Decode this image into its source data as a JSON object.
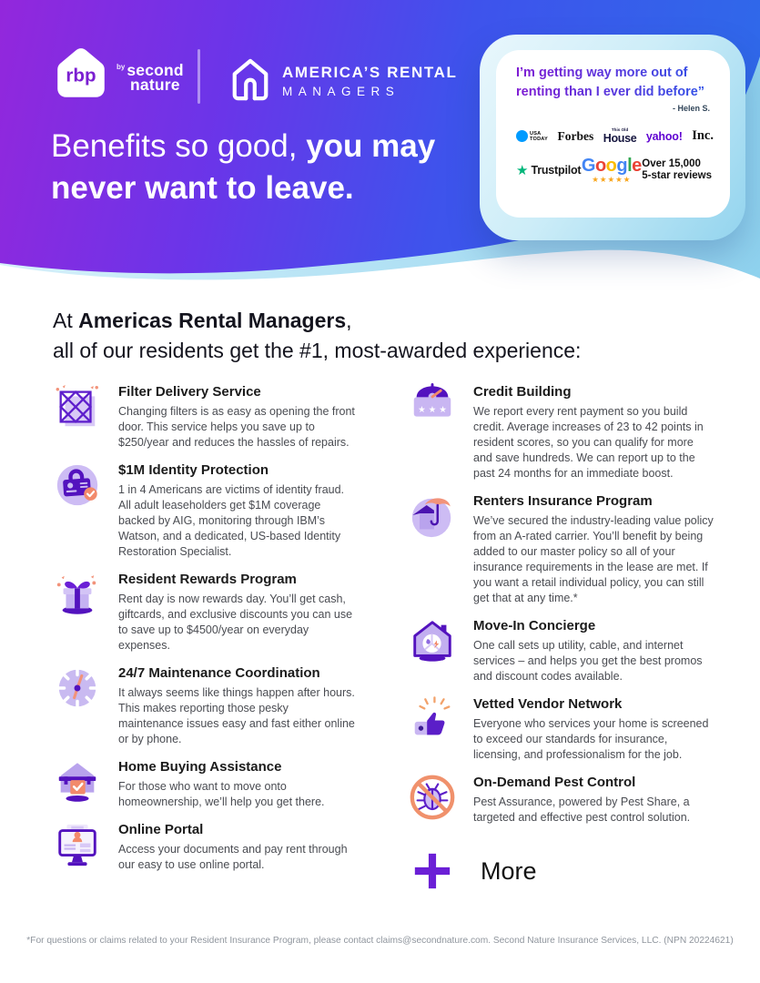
{
  "theme": {
    "accent_purple": "#6B1FD6",
    "accent_blue": "#2D6CE9",
    "accent_orange": "#F28A6B",
    "trustpilot_green": "#00B67A",
    "google_star_orange": "#F8A51B",
    "usatoday_blue": "#009BFF",
    "yahoo_purple": "#5F01D1",
    "google_letter_colors": [
      "#4285F4",
      "#EA4335",
      "#FBBC05",
      "#4285F4",
      "#34A853",
      "#EA4335"
    ]
  },
  "header": {
    "rbp": {
      "badge_text": "rbp",
      "by": "by",
      "brand_top": "second",
      "brand_bottom": "nature"
    },
    "company": {
      "name_line1": "AMERICA’S RENTAL",
      "name_line2": "MANAGERS"
    },
    "headline": {
      "light": "Benefits so good, ",
      "bold_line1": "you may",
      "bold_line2": "never want to leave."
    },
    "testimonial": {
      "quote_line1": "I’m getting way more out of",
      "quote_line2": "renting than I ever did before”",
      "attribution": "- Helen S.",
      "press": {
        "usatoday_line1": "USA",
        "usatoday_line2": "TODAY",
        "forbes": "Forbes",
        "house_top": "This Old",
        "house_main": "House",
        "yahoo": "yahoo!",
        "inc": "Inc."
      },
      "reviews": {
        "trustpilot_star": "★",
        "trustpilot": "Trustpilot",
        "google": "Google",
        "google_stars": "★★★★★",
        "count_line1": "Over 15,000",
        "count_line2": "5-star reviews"
      }
    }
  },
  "intro": {
    "prefix": "At ",
    "brand": "Americas Rental Managers",
    "suffix": ",",
    "line2": "all of our residents get the #1, most-awarded experience:"
  },
  "benefits": {
    "left": [
      {
        "icon": "filter-delivery-icon",
        "title": "Filter Delivery Service",
        "description": "Changing filters is as easy as opening the front door. This service helps you save up to $250/year and reduces the hassles of repairs."
      },
      {
        "icon": "identity-protection-icon",
        "title": "$1M Identity Protection",
        "description": "1 in 4 Americans are victims of identity fraud. All adult leaseholders get $1M coverage backed by AIG, monitoring through IBM’s Watson, and a dedicated, US-based Identity Restoration Specialist."
      },
      {
        "icon": "resident-rewards-icon",
        "title": "Resident Rewards Program",
        "description": "Rent day is now rewards day. You’ll get cash, giftcards, and exclusive discounts you can use to save up to $4500/year on everyday expenses."
      },
      {
        "icon": "maintenance-icon",
        "title": "24/7 Maintenance Coordination",
        "description": "It always seems like things happen after hours. This makes reporting those pesky maintenance issues easy and fast either online or by phone."
      },
      {
        "icon": "home-buying-icon",
        "title": "Home Buying Assistance",
        "description": "For those who want to move onto homeownership, we’ll help you get there."
      },
      {
        "icon": "online-portal-icon",
        "title": "Online Portal",
        "description": "Access your documents and pay rent through our easy to use online portal."
      }
    ],
    "right": [
      {
        "icon": "credit-building-icon",
        "title": "Credit Building",
        "description": "We report every rent payment so you build credit. Average increases of 23 to 42 points in resident scores, so you can qualify for more and save hundreds. We can report up to the past 24 months for an immediate boost."
      },
      {
        "icon": "renters-insurance-icon",
        "title": "Renters Insurance Program",
        "description": "We’ve secured the industry-leading value policy from an A-rated carrier. You’ll benefit by being added to our master policy so all of your insurance requirements in the lease are met. If you want a retail individual policy, you can still get that at any time.*"
      },
      {
        "icon": "move-in-concierge-icon",
        "title": "Move-In Concierge",
        "description": "One call sets up utility, cable, and internet services – and helps you get the best promos and discount codes available."
      },
      {
        "icon": "vetted-vendor-icon",
        "title": "Vetted Vendor Network",
        "description": "Everyone who services your home is screened to exceed our standards for insurance, licensing, and professionalism for the job."
      },
      {
        "icon": "pest-control-icon",
        "title": "On-Demand Pest Control",
        "description": "Pest Assurance, powered by Pest Share, a targeted and effective pest control solution."
      }
    ],
    "more_label": "More"
  },
  "footer": {
    "disclaimer": "*For questions or claims related to your Resident Insurance Program, please contact claims@secondnature.com. Second Nature Insurance Services, LLC. (NPN 20224621)"
  }
}
